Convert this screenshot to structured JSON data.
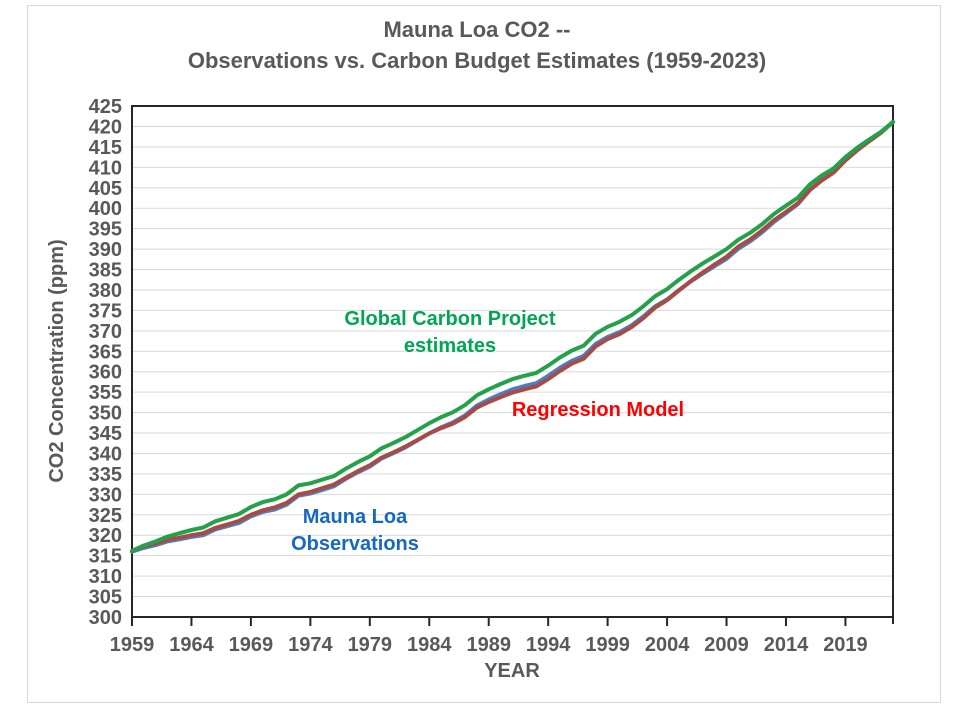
{
  "header": {
    "title_line1": "Mauna Loa CO2 --",
    "title_line2": "Observations vs. Carbon Budget Estimates (1959-2023)"
  },
  "annotations": {
    "gcp_line1": "Global Carbon Project",
    "gcp_line2": "estimates",
    "regression": "Regression Model",
    "obs_line1": "Mauna Loa",
    "obs_line2": "Observations"
  },
  "colors": {
    "title_text": "#595959",
    "axis_text": "#595959",
    "axis_line": "#262626",
    "gridline": "#D9D9D9",
    "frame_border": "#D8D8D8",
    "observations_line": "#4F7DBF",
    "regression_line": "#A64B45",
    "gcp_line": "#24A149",
    "observations_label": "#1668C1",
    "regression_label": "#FF0000",
    "gcp_label": "#00A651"
  },
  "chart_data": {
    "type": "line",
    "title": "Mauna Loa CO2 -- Observations vs. Carbon Budget Estimates (1959-2023)",
    "xlabel": "YEAR",
    "ylabel": "CO2 Concentration (ppm)",
    "xlim": [
      1959,
      2023
    ],
    "ylim": [
      300,
      425
    ],
    "grid": "horizontal",
    "legend_position": "inline-annotations",
    "xticks": [
      1959,
      1964,
      1969,
      1974,
      1979,
      1984,
      1989,
      1994,
      1999,
      2004,
      2009,
      2014,
      2019
    ],
    "yticks": [
      300,
      305,
      310,
      315,
      320,
      325,
      330,
      335,
      340,
      345,
      350,
      355,
      360,
      365,
      370,
      375,
      380,
      385,
      390,
      395,
      400,
      405,
      410,
      415,
      420,
      425
    ],
    "x": [
      1959,
      1960,
      1961,
      1962,
      1963,
      1964,
      1965,
      1966,
      1967,
      1968,
      1969,
      1970,
      1971,
      1972,
      1973,
      1974,
      1975,
      1976,
      1977,
      1978,
      1979,
      1980,
      1981,
      1982,
      1983,
      1984,
      1985,
      1986,
      1987,
      1988,
      1989,
      1990,
      1991,
      1992,
      1993,
      1994,
      1995,
      1996,
      1997,
      1998,
      1999,
      2000,
      2001,
      2002,
      2003,
      2004,
      2005,
      2006,
      2007,
      2008,
      2009,
      2010,
      2011,
      2012,
      2013,
      2014,
      2015,
      2016,
      2017,
      2018,
      2019,
      2020,
      2021,
      2022,
      2023
    ],
    "series": [
      {
        "name": "Mauna Loa Observations",
        "color_key": "observations_line",
        "values": [
          316.0,
          316.9,
          317.6,
          318.5,
          319.0,
          319.6,
          320.0,
          321.4,
          322.2,
          323.0,
          324.6,
          325.7,
          326.3,
          327.5,
          329.7,
          330.2,
          331.1,
          332.0,
          333.8,
          335.4,
          336.8,
          338.8,
          340.1,
          341.5,
          343.2,
          344.9,
          346.4,
          347.6,
          349.3,
          351.7,
          353.2,
          354.5,
          355.7,
          356.5,
          357.2,
          359.0,
          361.0,
          362.7,
          363.9,
          366.8,
          368.5,
          369.7,
          371.3,
          373.5,
          376.0,
          377.7,
          380.0,
          382.1,
          384.0,
          385.8,
          387.6,
          390.1,
          391.9,
          394.1,
          396.7,
          398.8,
          401.0,
          404.4,
          406.8,
          408.7,
          411.7,
          414.2,
          416.4,
          418.5,
          421.1
        ]
      },
      {
        "name": "Regression Model",
        "color_key": "regression_line",
        "values": [
          316.1,
          317.3,
          318.0,
          318.9,
          319.4,
          320.0,
          320.5,
          321.8,
          322.6,
          323.5,
          325.0,
          326.1,
          326.8,
          327.9,
          330.0,
          330.6,
          331.5,
          332.4,
          334.1,
          335.7,
          337.1,
          339.0,
          340.3,
          341.7,
          343.3,
          344.9,
          346.2,
          347.3,
          348.9,
          351.2,
          352.6,
          353.8,
          354.9,
          355.7,
          356.4,
          358.2,
          360.2,
          362.0,
          363.2,
          366.2,
          368.0,
          369.2,
          370.9,
          373.1,
          375.7,
          377.5,
          379.9,
          382.2,
          384.3,
          386.2,
          388.1,
          390.6,
          392.4,
          394.6,
          397.1,
          399.1,
          401.2,
          404.5,
          406.8,
          408.7,
          411.7,
          414.2,
          416.4,
          418.5,
          421.1
        ]
      },
      {
        "name": "Global Carbon Project estimates",
        "color_key": "gcp_line",
        "values": [
          316.2,
          317.5,
          318.5,
          319.7,
          320.5,
          321.3,
          321.9,
          323.4,
          324.3,
          325.2,
          326.9,
          328.1,
          328.8,
          330.0,
          332.2,
          332.7,
          333.6,
          334.5,
          336.3,
          337.9,
          339.3,
          341.3,
          342.6,
          344.0,
          345.7,
          347.4,
          348.9,
          350.1,
          351.8,
          354.2,
          355.7,
          357.0,
          358.2,
          359.0,
          359.7,
          361.5,
          363.5,
          365.2,
          366.4,
          369.3,
          371.0,
          372.2,
          373.8,
          376.0,
          378.5,
          380.2,
          382.5,
          384.6,
          386.5,
          388.2,
          390.0,
          392.3,
          394.0,
          396.1,
          398.6,
          400.6,
          402.6,
          405.8,
          408.0,
          409.7,
          412.5,
          414.8,
          416.8,
          418.7,
          421.1
        ]
      }
    ]
  }
}
